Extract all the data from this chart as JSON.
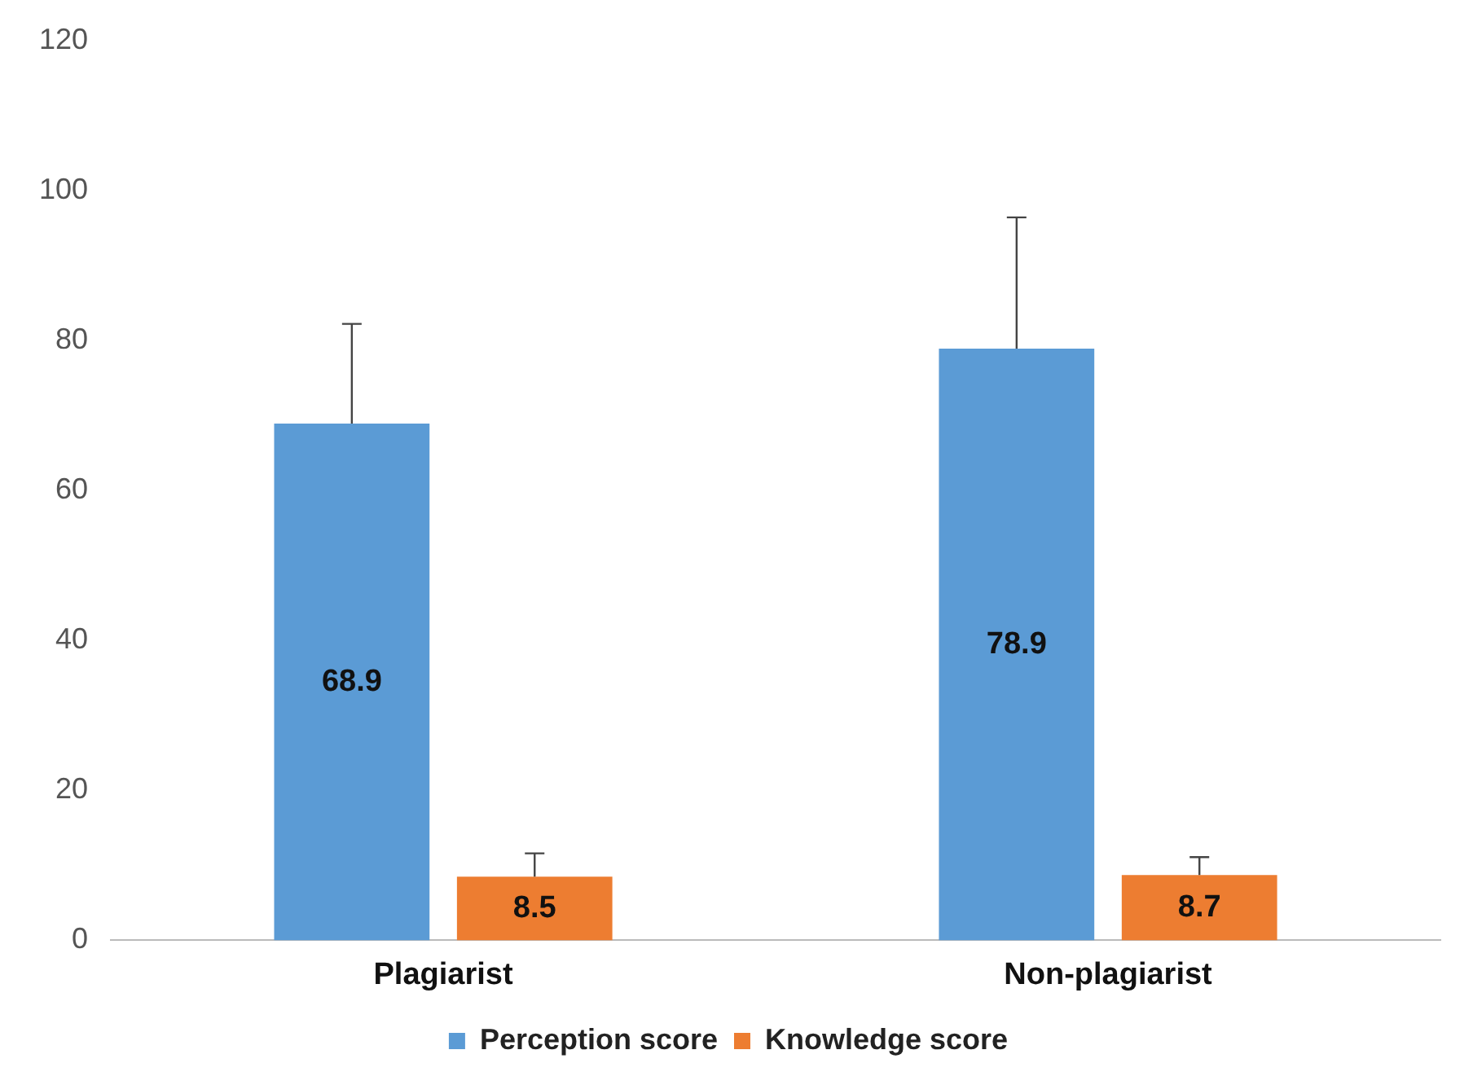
{
  "chart_data": {
    "type": "bar",
    "categories": [
      "Plagiarist",
      "Non-plagiarist"
    ],
    "series": [
      {
        "name": "Perception score",
        "color": "#5b9bd5",
        "values": [
          68.9,
          78.9
        ],
        "errors": [
          [
            68.9,
            82.2
          ],
          [
            78.9,
            96.4
          ]
        ]
      },
      {
        "name": "Knowledge score",
        "color": "#ed7d31",
        "values": [
          8.5,
          8.7
        ],
        "errors": [
          [
            8.5,
            11.6
          ],
          [
            8.7,
            11.1
          ]
        ]
      }
    ],
    "ylim": [
      0,
      120
    ],
    "yticks": [
      0,
      20,
      40,
      60,
      80,
      100,
      120
    ],
    "grid": false,
    "legend": "bottom",
    "data_labels": true
  }
}
